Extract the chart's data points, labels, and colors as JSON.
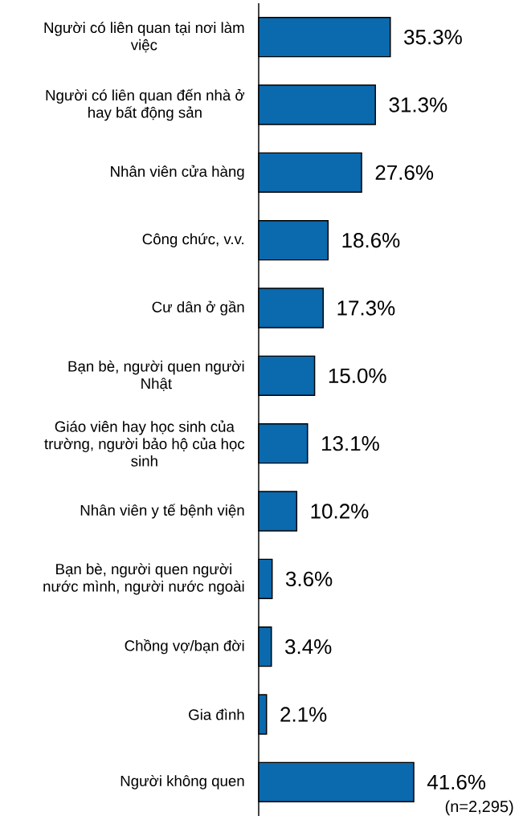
{
  "chart_data": {
    "type": "bar",
    "orientation": "horizontal",
    "categories": [
      "Người có liên quan tại nơi làm việc",
      "Người có liên quan đến nhà ở hay bất động sản",
      "Nhân viên cửa hàng",
      "Công chức, v.v.",
      "Cư dân ở gần",
      "Bạn bè, người quen người Nhật",
      "Giáo viên hay học sinh của trường, người bảo hộ của học sinh",
      "Nhân viên y tế bệnh viện",
      "Bạn bè, người quen người nước mình, người nước ngoài",
      "Chồng vợ/bạn đời",
      "Gia đình",
      "Người không quen"
    ],
    "values": [
      35.3,
      31.3,
      27.6,
      18.6,
      17.3,
      15.0,
      13.1,
      10.2,
      3.6,
      3.4,
      2.1,
      41.6
    ],
    "value_labels": [
      "35.3%",
      "31.3%",
      "27.6%",
      "18.6%",
      "17.3%",
      "15.0%",
      "13.1%",
      "10.2%",
      "3.6%",
      "3.4%",
      "2.1%",
      "41.6%"
    ],
    "color": "#0b69ad",
    "tick_labels": "y",
    "annotations": [
      "(n=2,295)"
    ]
  }
}
